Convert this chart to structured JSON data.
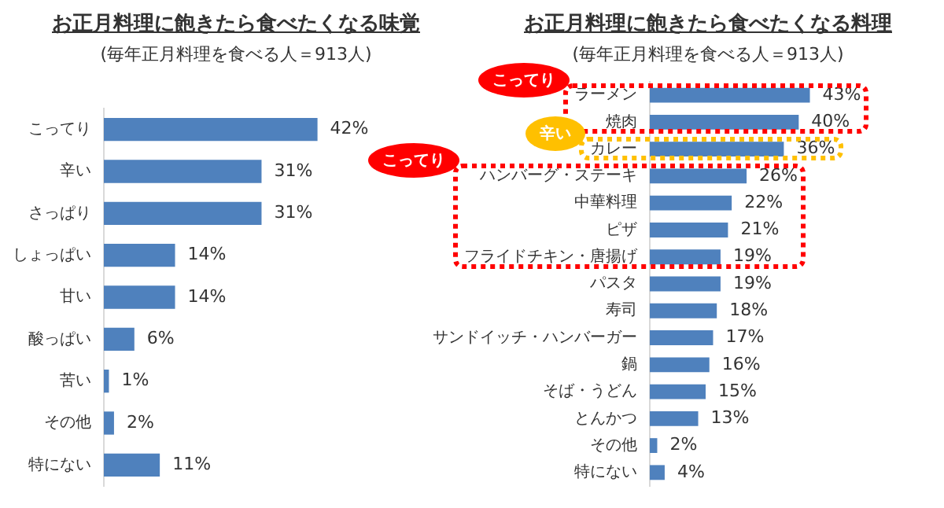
{
  "chart_data": [
    {
      "type": "bar",
      "orientation": "horizontal",
      "title": "お正月料理に飽きたら食べたくなる味覚",
      "subtitle": "(毎年正月料理を食べる人＝913人)",
      "grid": false,
      "categories": [
        "こってり",
        "辛い",
        "さっぱり",
        "しょっぱい",
        "甘い",
        "酸っぱい",
        "苦い",
        "その他",
        "特にない"
      ],
      "values": [
        42,
        31,
        31,
        14,
        14,
        6,
        1,
        2,
        11
      ],
      "value_labels": [
        "42%",
        "31%",
        "31%",
        "14%",
        "14%",
        "6%",
        "1%",
        "2%",
        "11%"
      ],
      "color": "#4f81bd"
    },
    {
      "type": "bar",
      "orientation": "horizontal",
      "title": "お正月料理に飽きたら食べたくなる料理",
      "subtitle": "(毎年正月料理を食べる人＝913人)",
      "grid": false,
      "categories": [
        "ラーメン",
        "焼肉",
        "カレー",
        "ハンバーグ・ステーキ",
        "中華料理",
        "ピザ",
        "フライドチキン・唐揚げ",
        "パスタ",
        "寿司",
        "サンドイッチ・ハンバーガー",
        "鍋",
        "そば・うどん",
        "とんかつ",
        "その他",
        "特にない"
      ],
      "values": [
        43,
        40,
        36,
        26,
        22,
        21,
        19,
        19,
        18,
        17,
        16,
        15,
        13,
        2,
        4
      ],
      "value_labels": [
        "43%",
        "40%",
        "36%",
        "26%",
        "22%",
        "21%",
        "19%",
        "19%",
        "18%",
        "17%",
        "16%",
        "15%",
        "13%",
        "2%",
        "4%"
      ],
      "color": "#4f81bd",
      "annotations": [
        "こってり",
        "辛い",
        "こってり"
      ]
    }
  ]
}
